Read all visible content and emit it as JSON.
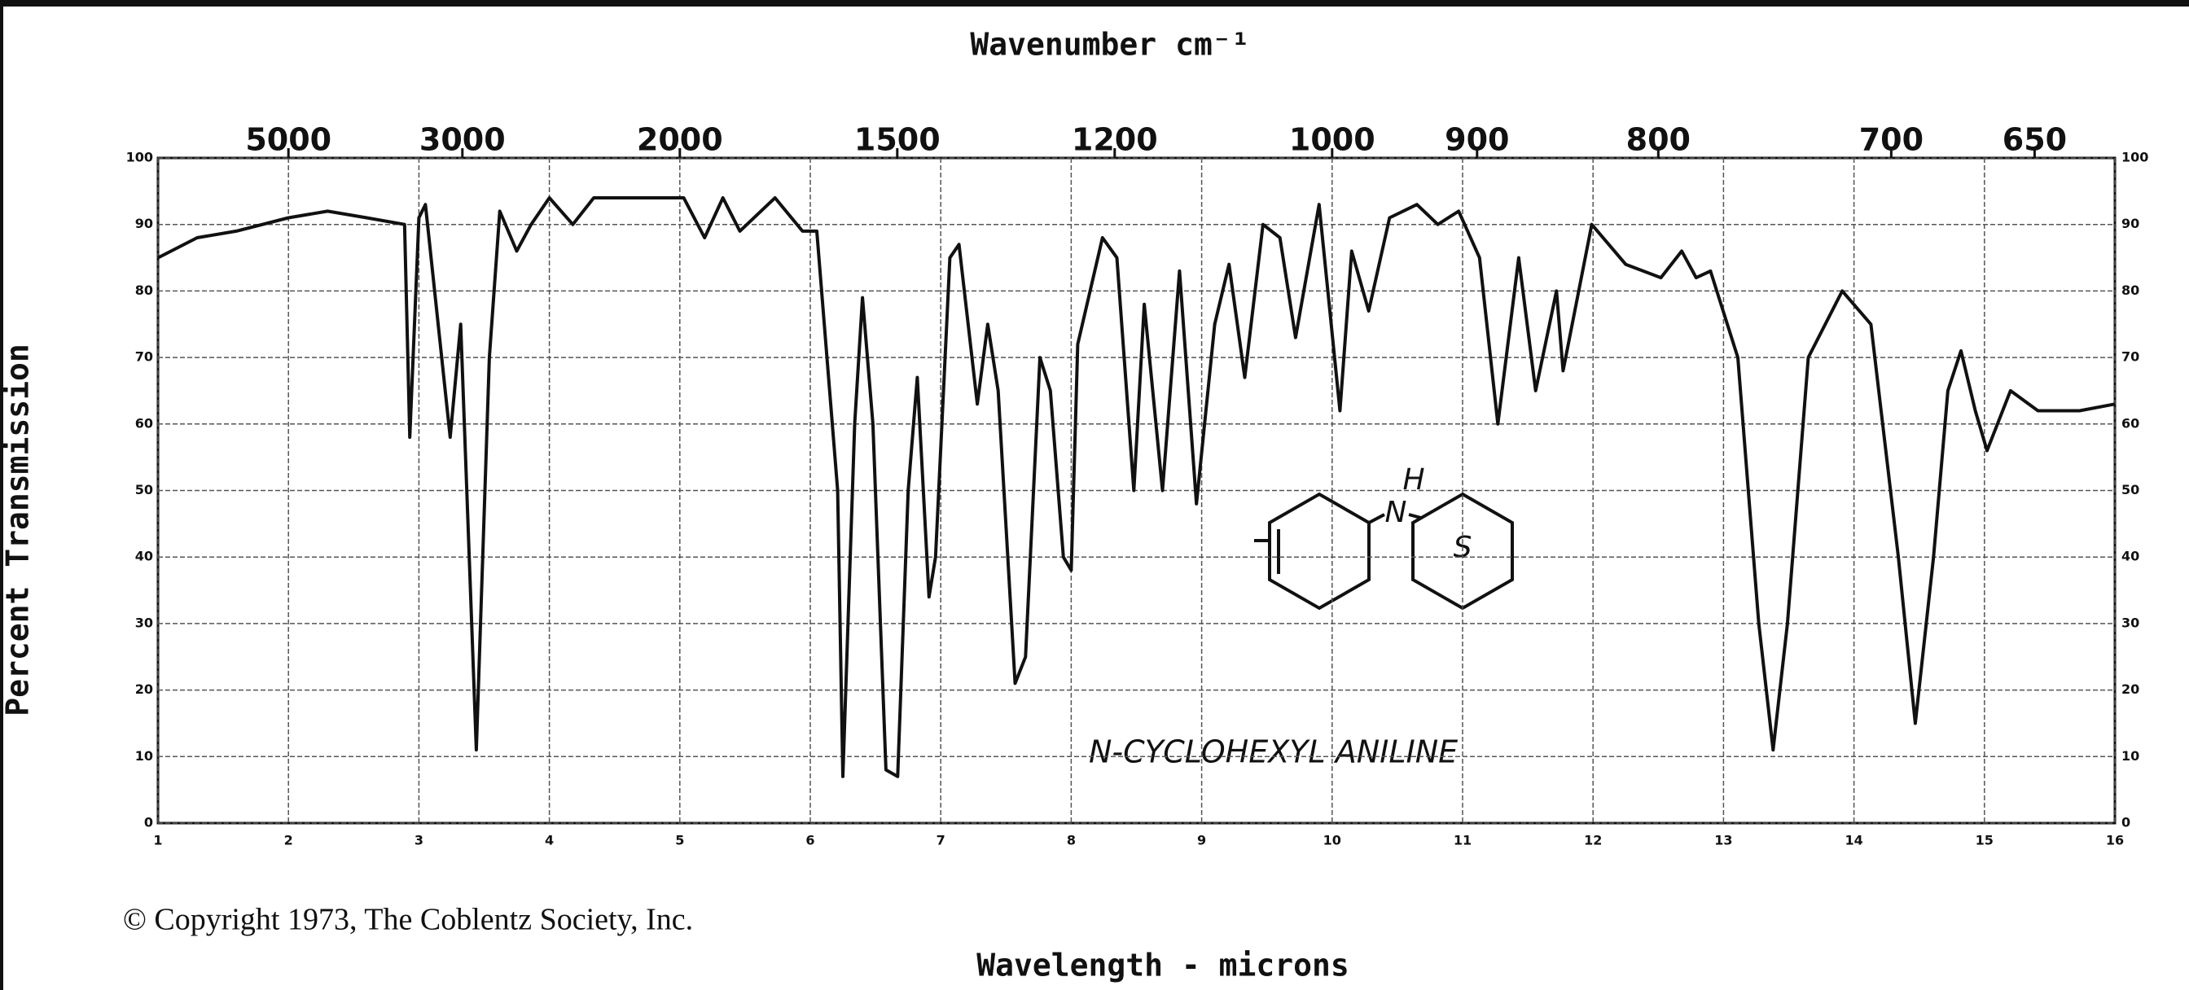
{
  "chart_data": {
    "type": "line",
    "title": "Wavenumber cm⁻¹",
    "xlabel": "Wavelength - microns",
    "ylabel": "Percent Transmission",
    "annotation": "N-CYCLOHEXYL ANILINE",
    "structure_labels": [
      "H",
      "N",
      "S"
    ],
    "footer": "© Copyright 1973, The Coblentz Society, Inc.",
    "color": "#111111",
    "grid": true,
    "xlim": [
      1,
      16
    ],
    "ylim": [
      0,
      100
    ],
    "xticks": [
      1,
      2,
      3,
      4,
      5,
      6,
      7,
      8,
      9,
      10,
      11,
      12,
      13,
      14,
      15,
      16
    ],
    "top_xticks": [
      5000,
      3000,
      2000,
      1500,
      1200,
      1000,
      900,
      800,
      700,
      650
    ],
    "yticks": [
      0,
      10,
      20,
      30,
      40,
      50,
      60,
      70,
      80,
      90,
      100
    ],
    "x": [
      1.0,
      1.3,
      1.6,
      2.0,
      2.3,
      2.6,
      2.89,
      2.93,
      3.0,
      3.05,
      3.24,
      3.32,
      3.44,
      3.54,
      3.62,
      3.75,
      3.86,
      4.0,
      4.18,
      4.34,
      4.71,
      5.03,
      5.19,
      5.33,
      5.46,
      5.73,
      5.94,
      6.05,
      6.21,
      6.25,
      6.34,
      6.4,
      6.48,
      6.58,
      6.67,
      6.75,
      6.82,
      6.91,
      6.96,
      7.07,
      7.14,
      7.28,
      7.36,
      7.44,
      7.57,
      7.65,
      7.76,
      7.84,
      7.94,
      8.0,
      8.05,
      8.24,
      8.35,
      8.48,
      8.56,
      8.7,
      8.83,
      8.96,
      9.1,
      9.21,
      9.33,
      9.47,
      9.6,
      9.72,
      9.9,
      10.06,
      10.15,
      10.28,
      10.44,
      10.65,
      10.81,
      10.97,
      11.13,
      11.27,
      11.43,
      11.56,
      11.72,
      11.77,
      11.99,
      12.25,
      12.52,
      12.68,
      12.79,
      12.9,
      13.11,
      13.27,
      13.38,
      13.49,
      13.65,
      13.91,
      14.13,
      14.34,
      14.47,
      14.61,
      14.72,
      14.82,
      14.93,
      15.02,
      15.2,
      15.41,
      15.73,
      16.0
    ],
    "values": [
      85,
      88,
      89,
      91,
      92,
      91,
      90,
      58,
      91,
      93,
      58,
      75,
      11,
      70,
      92,
      86,
      90,
      94,
      90,
      94,
      94,
      94,
      88,
      94,
      89,
      94,
      89,
      89,
      50,
      7,
      60,
      79,
      60,
      8,
      7,
      50,
      67,
      34,
      40,
      85,
      87,
      63,
      75,
      65,
      21,
      25,
      70,
      65,
      40,
      38,
      72,
      88,
      85,
      50,
      78,
      50,
      83,
      48,
      75,
      84,
      67,
      90,
      88,
      73,
      93,
      62,
      86,
      77,
      91,
      93,
      90,
      92,
      85,
      60,
      85,
      65,
      80,
      68,
      90,
      84,
      82,
      86,
      82,
      83,
      70,
      30,
      11,
      30,
      70,
      80,
      75,
      40,
      15,
      40,
      65,
      71,
      62,
      56,
      65,
      62,
      62,
      63
    ]
  }
}
